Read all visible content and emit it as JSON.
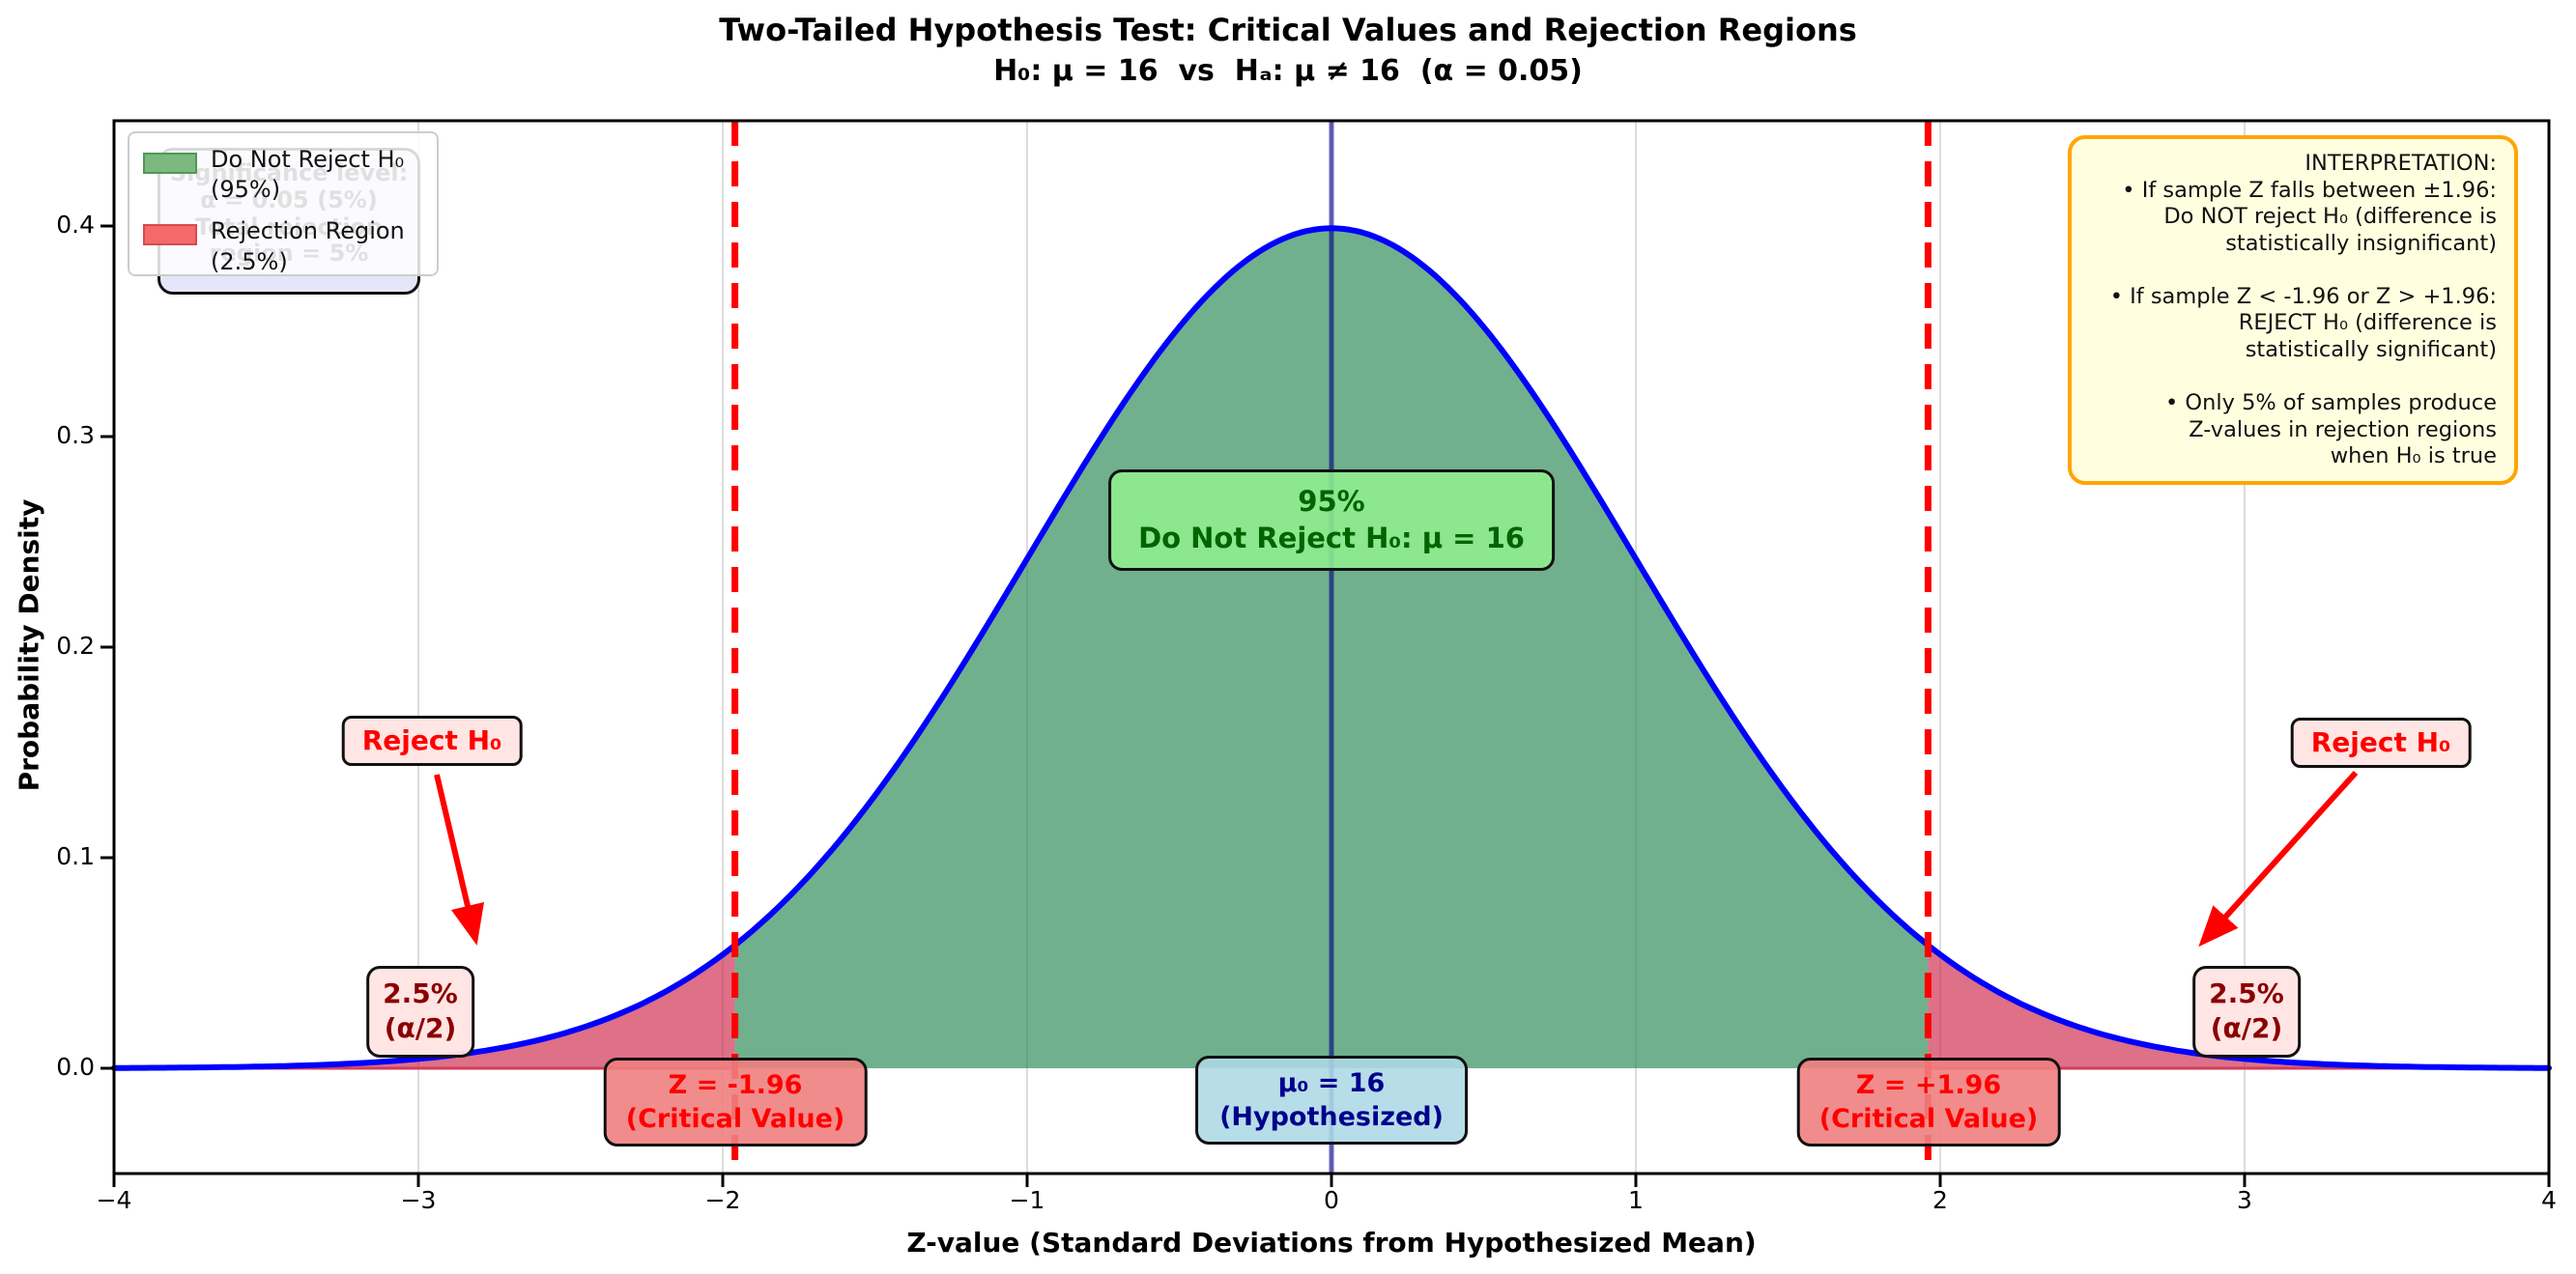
{
  "header": {
    "title": "Two-Tailed Hypothesis Test: Critical Values and Rejection Regions",
    "subtitle": "H₀: μ = 16  vs  Hₐ: μ ≠ 16  (α = 0.05)"
  },
  "chart_data": {
    "type": "area",
    "distribution": {
      "name": "standard normal",
      "mean": 0,
      "sd": 1,
      "peak_density": 0.3989
    },
    "x_range": [
      -4,
      4
    ],
    "y_range": [
      -0.05,
      0.45
    ],
    "x_ticks": [
      -4,
      -3,
      -2,
      -1,
      0,
      1,
      2,
      3,
      4
    ],
    "x_tick_labels": [
      "−4",
      "−3",
      "−2",
      "−1",
      "0",
      "1",
      "2",
      "3",
      "4"
    ],
    "y_ticks": [
      0.0,
      0.1,
      0.2,
      0.3,
      0.4
    ],
    "y_tick_labels": [
      "0.0",
      "0.1",
      "0.2",
      "0.3",
      "0.4"
    ],
    "xlabel": "Z-value (Standard Deviations from Hypothesized Mean)",
    "ylabel": "Probability Density",
    "grid_x": [
      -3,
      -2,
      -1,
      0,
      1,
      2,
      3
    ],
    "critical_values": [
      -1.96,
      1.96
    ],
    "mean_z": 0,
    "alpha": 0.05,
    "regions": [
      {
        "name": "rejection_left",
        "from": -4,
        "to": -1.96,
        "probability": 0.025
      },
      {
        "name": "acceptance",
        "from": -1.96,
        "to": 1.96,
        "probability": 0.95
      },
      {
        "name": "rejection_right",
        "from": 1.96,
        "to": 4,
        "probability": 0.025
      }
    ],
    "colors": {
      "curve": "#0000ff",
      "acceptance_fill": "rgba(46,139,87,0.68)",
      "rejection_fill": "rgba(205,35,70,0.65)",
      "rejection_edge": "#d23b5a",
      "critical_line": "#ff0000",
      "mean_line": "rgba(0,0,139,0.6)",
      "grid": "#dcdcdc",
      "spine": "#000000"
    }
  },
  "legend": {
    "items": [
      {
        "label": "Do Not Reject H₀\n(95%)",
        "swatch_fill": "#7cb87f",
        "swatch_edge": "#4e9a55"
      },
      {
        "label": "Rejection Region\n(2.5%)",
        "swatch_fill": "#f4696b",
        "swatch_edge": "#d94a4e"
      }
    ]
  },
  "annotations": {
    "significance_box": {
      "lines": [
        "Significance level:",
        "α = 0.05 (5%)",
        "Total rejection",
        "region = 5%"
      ]
    },
    "interpretation_box": {
      "lines": [
        "INTERPRETATION:",
        "• If sample Z falls between ±1.96:",
        "Do NOT reject H₀ (difference is",
        "statistically insignificant)",
        "",
        "• If sample Z < -1.96 or Z > +1.96:",
        "REJECT H₀ (difference is",
        "statistically significant)",
        "",
        "• Only 5% of samples produce",
        "Z-values in rejection regions",
        "when H₀ is true"
      ]
    },
    "acceptance_label": {
      "lines": [
        "95%",
        "Do Not Reject H₀: μ = 16"
      ]
    },
    "mean_label": {
      "lines": [
        "μ₀ = 16",
        "(Hypothesized)"
      ]
    },
    "critical_left_label": {
      "lines": [
        "Z = -1.96",
        "(Critical Value)"
      ]
    },
    "critical_right_label": {
      "lines": [
        "Z = +1.96",
        "(Critical Value)"
      ]
    },
    "reject_left_label": "Reject H₀",
    "reject_right_label": "Reject H₀",
    "tail_left_label": {
      "lines": [
        "2.5%",
        "(α/2)"
      ]
    },
    "tail_right_label": {
      "lines": [
        "2.5%",
        "(α/2)"
      ]
    }
  }
}
